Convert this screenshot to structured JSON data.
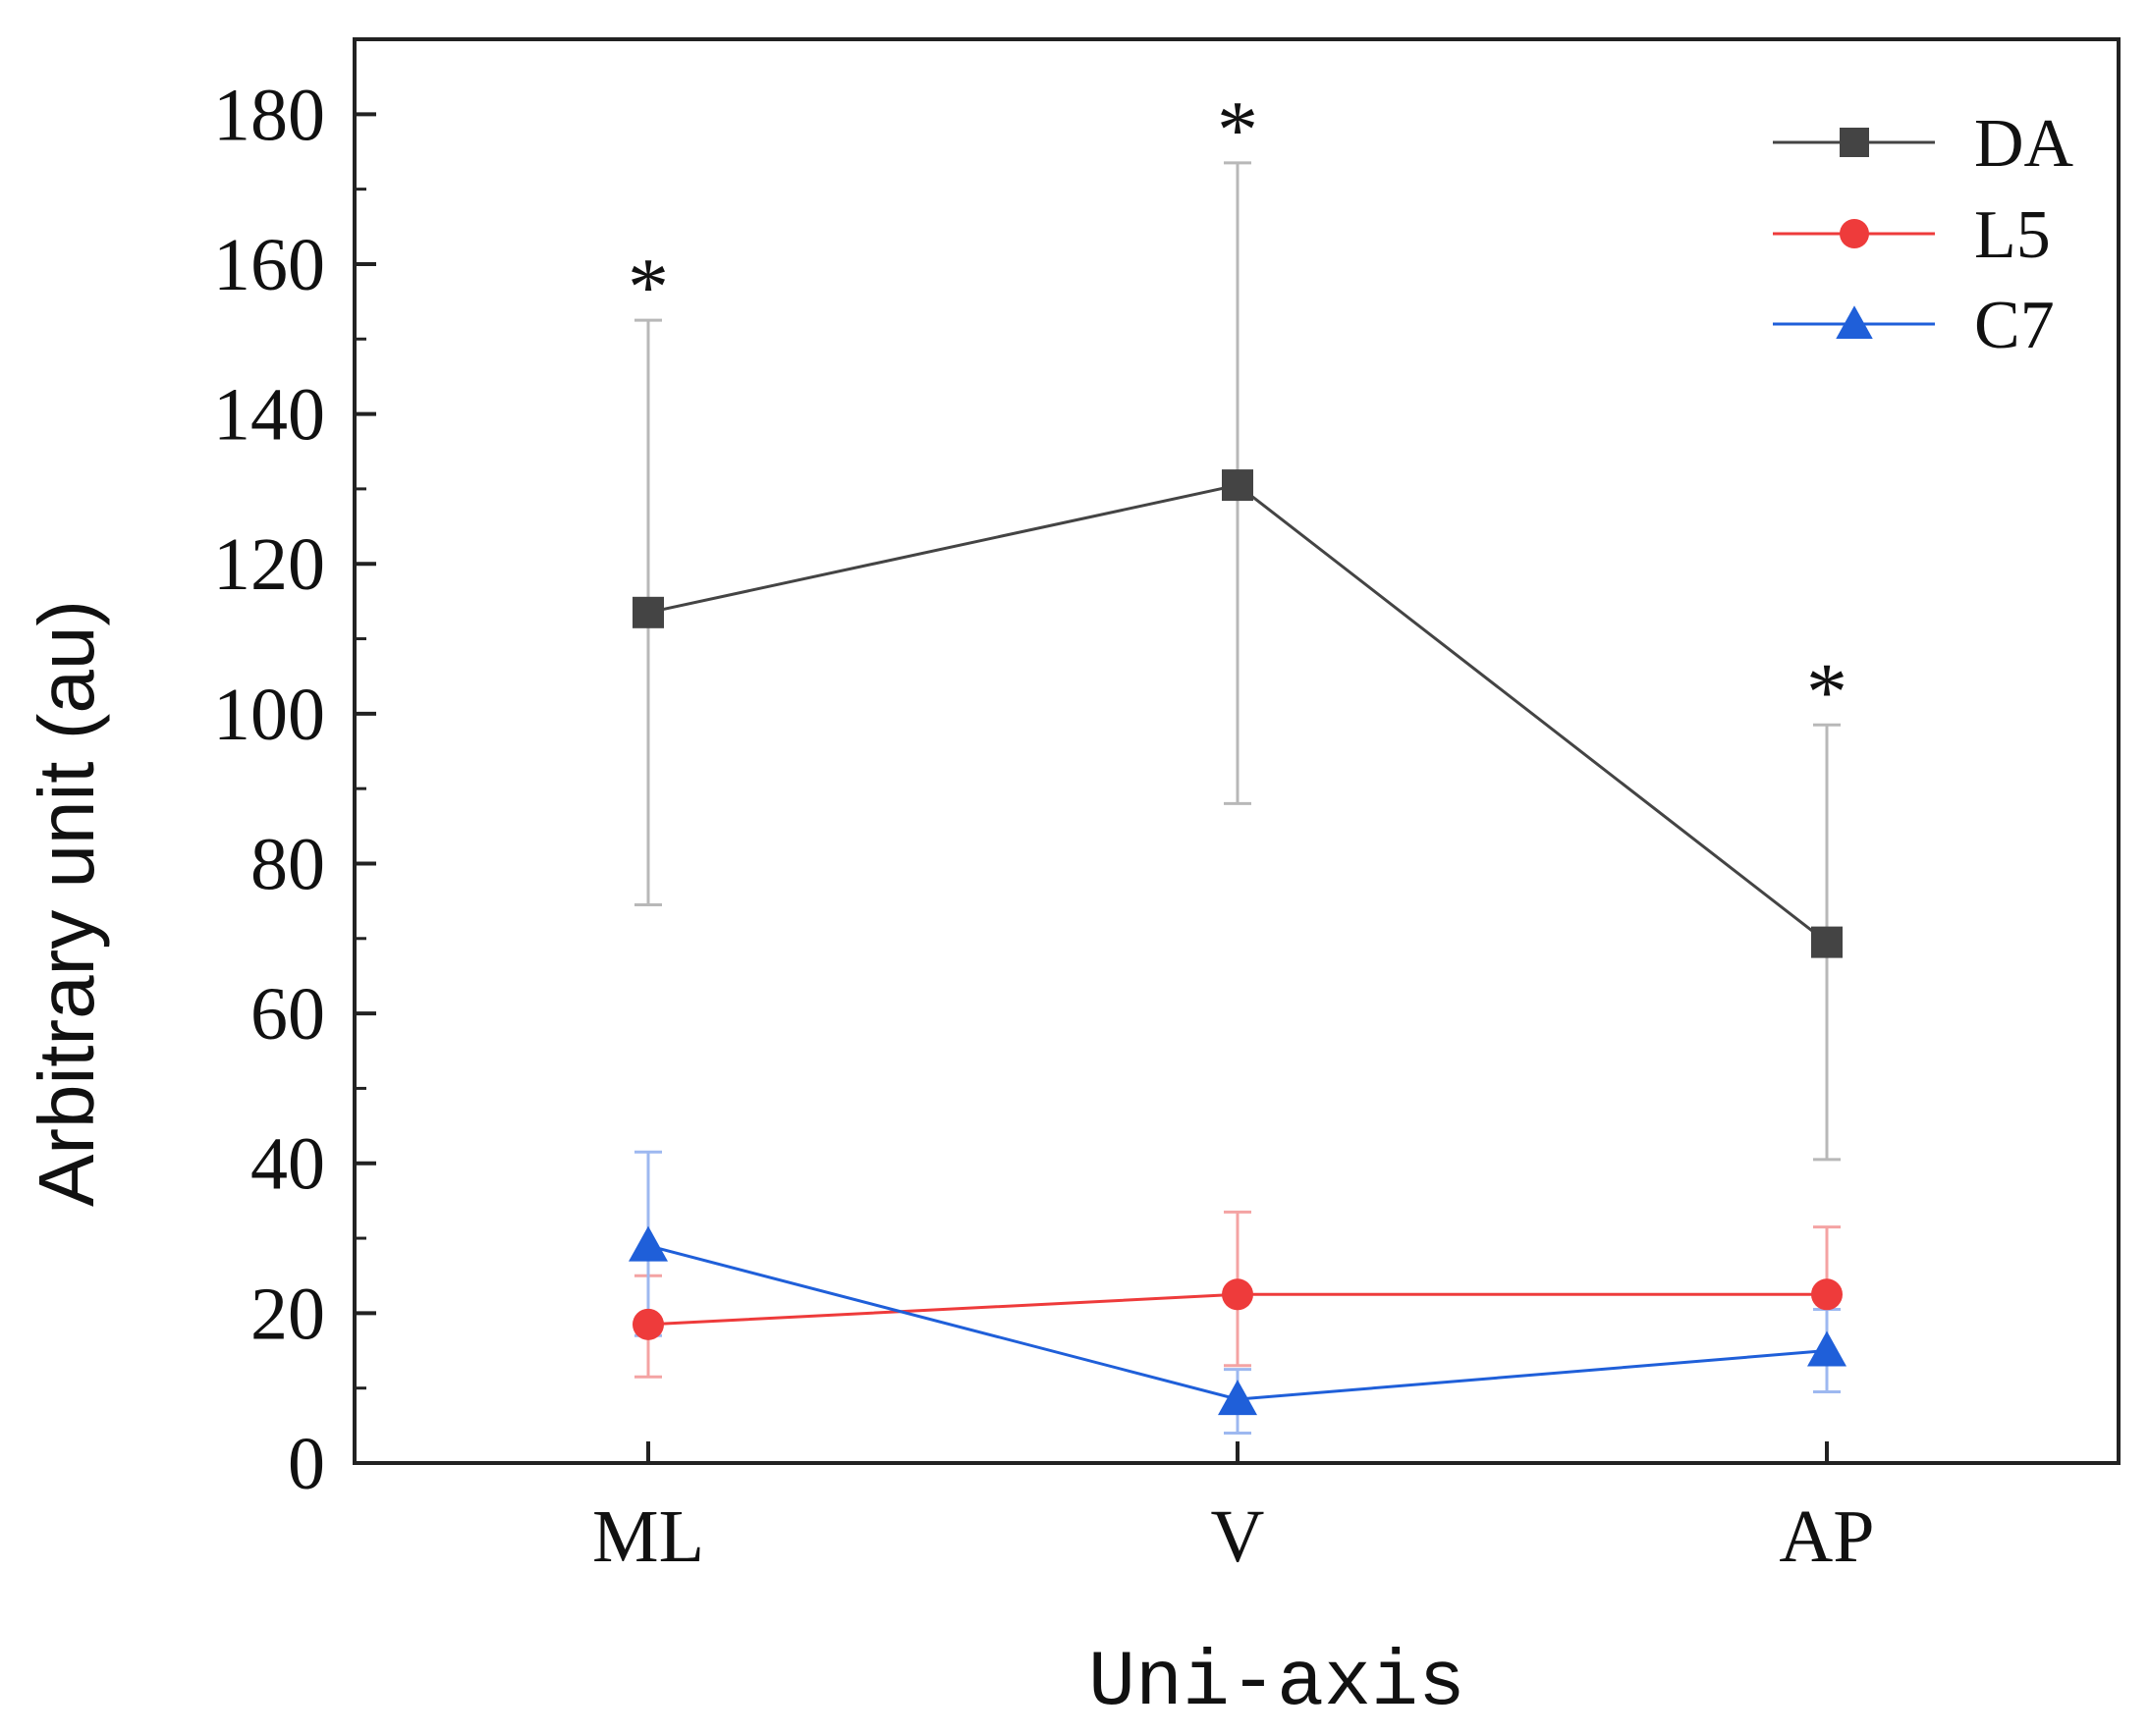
{
  "chart_data": {
    "type": "line",
    "title": "",
    "xlabel": "Uni-axis",
    "ylabel": "Arbitrary unit (au)",
    "categories": [
      "ML",
      "V",
      "AP"
    ],
    "ylim": [
      0,
      190
    ],
    "yticks": [
      0,
      20,
      40,
      60,
      80,
      100,
      120,
      140,
      160,
      180
    ],
    "grid": false,
    "legend_position": "top-right",
    "series": [
      {
        "name": "DA",
        "color": "#444444",
        "error_color": "#b8b8b8",
        "marker": "square",
        "values": [
          113.5,
          130.5,
          69.5
        ],
        "error_low": [
          74.5,
          88.0,
          40.5
        ],
        "error_high": [
          152.5,
          173.5,
          98.5
        ]
      },
      {
        "name": "L5",
        "color": "#ee3b3b",
        "error_color": "#f4a3a3",
        "marker": "circle",
        "values": [
          18.5,
          22.5,
          22.5
        ],
        "error_low": [
          11.5,
          13.0,
          13.5
        ],
        "error_high": [
          25.0,
          33.5,
          31.5
        ]
      },
      {
        "name": "C7",
        "color": "#1f5fd9",
        "error_color": "#9db8f0",
        "marker": "triangle",
        "values": [
          29.0,
          8.5,
          15.0
        ],
        "error_low": [
          17.0,
          4.0,
          9.5
        ],
        "error_high": [
          41.5,
          12.5,
          20.5
        ]
      }
    ],
    "annotations": [
      {
        "text": "*",
        "category": "ML",
        "y": 152.5
      },
      {
        "text": "*",
        "category": "V",
        "y": 173.5
      },
      {
        "text": "*",
        "category": "AP",
        "y": 98.5
      }
    ]
  }
}
